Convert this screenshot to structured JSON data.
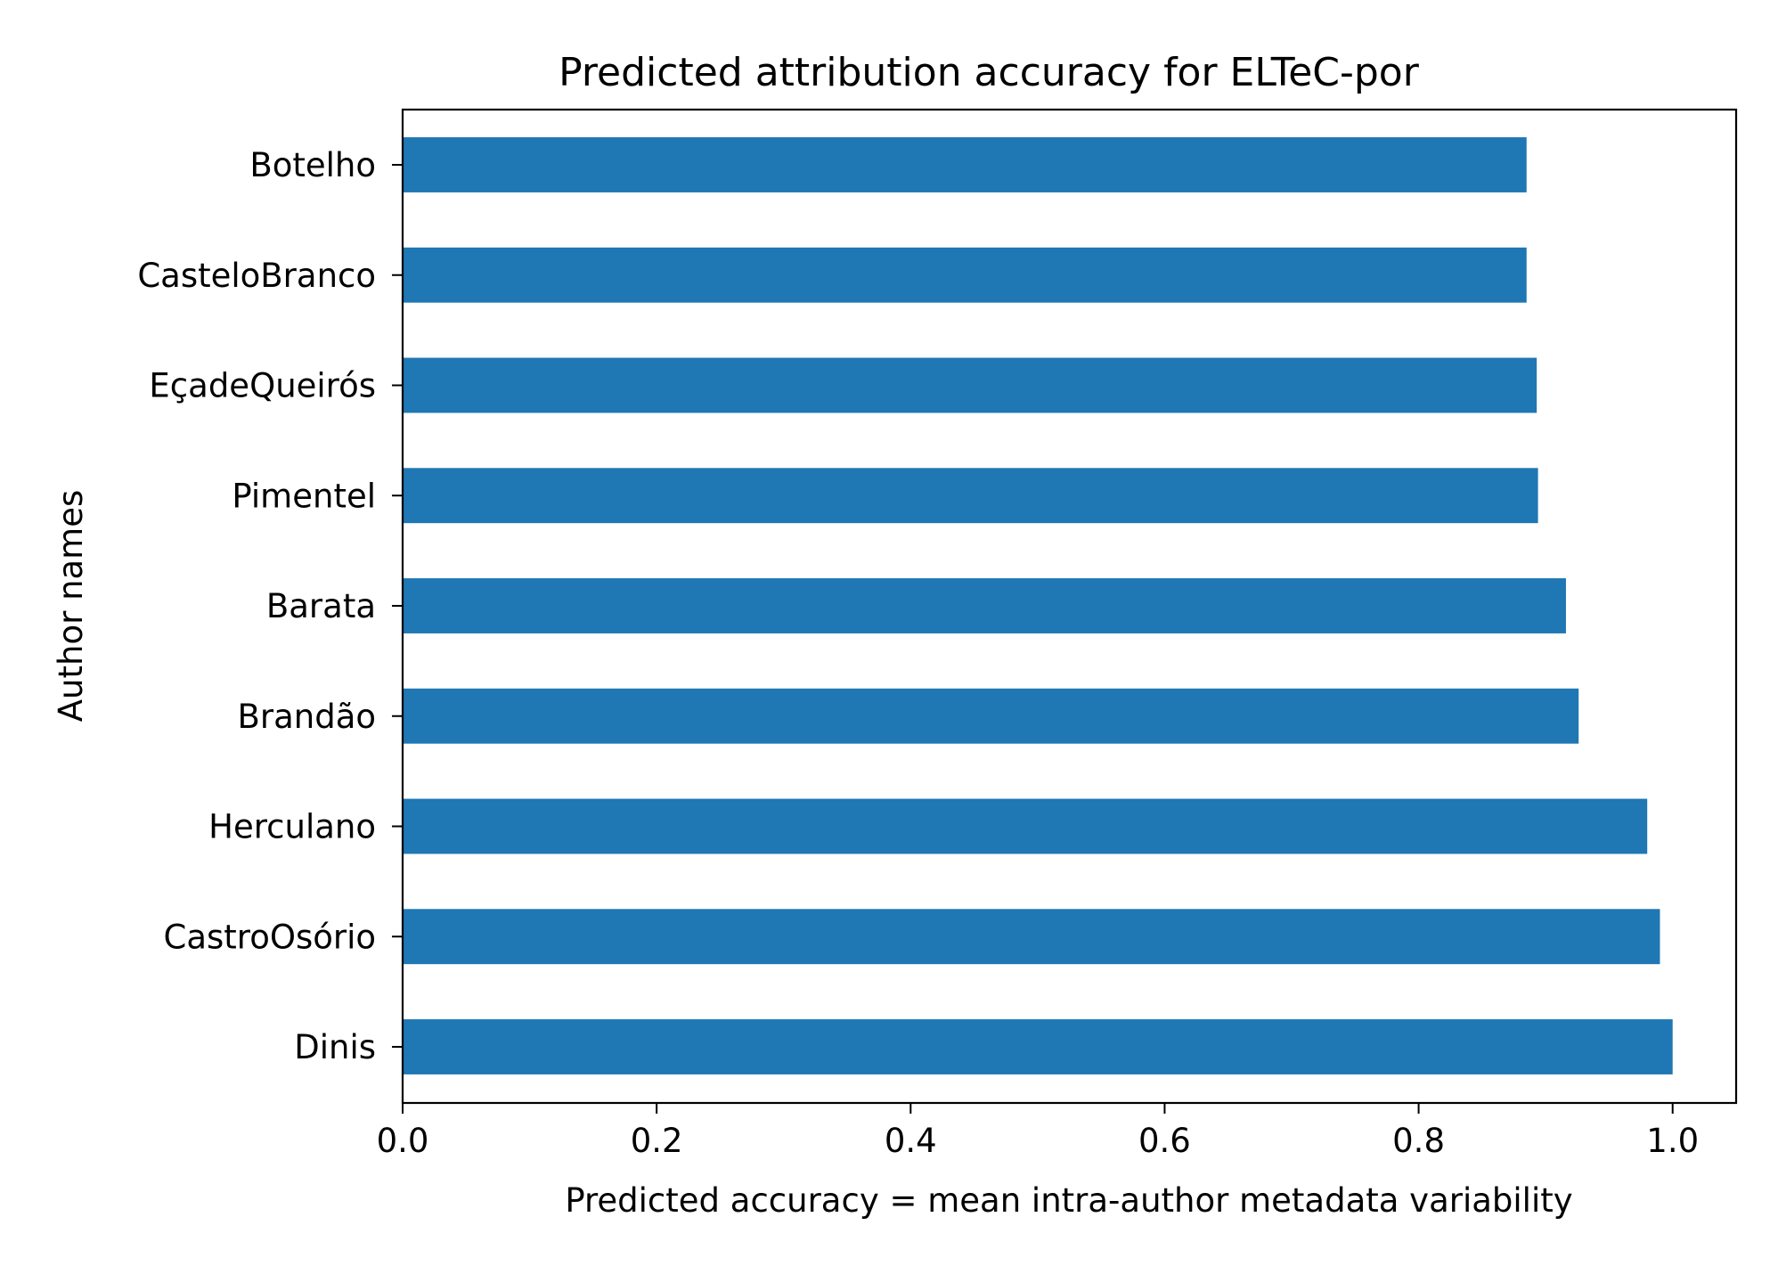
{
  "chart_data": {
    "type": "bar",
    "orientation": "horizontal",
    "title": "Predicted attribution accuracy for ELTeC-por",
    "xlabel": "Predicted accuracy = mean intra-author metadata variability",
    "ylabel": "Author names",
    "xlim": [
      0.0,
      1.05
    ],
    "xticks": [
      "0.0",
      "0.2",
      "0.4",
      "0.6",
      "0.8",
      "1.0"
    ],
    "categories": [
      "Botelho",
      "CasteloBranco",
      "EçadeQueirós",
      "Pimentel",
      "Barata",
      "Brandão",
      "Herculano",
      "CastroOsório",
      "Dinis"
    ],
    "values": [
      0.885,
      0.885,
      0.893,
      0.894,
      0.916,
      0.926,
      0.98,
      0.99,
      1.0
    ],
    "bar_color": "#1f77b4",
    "grid": false,
    "legend": "none"
  }
}
